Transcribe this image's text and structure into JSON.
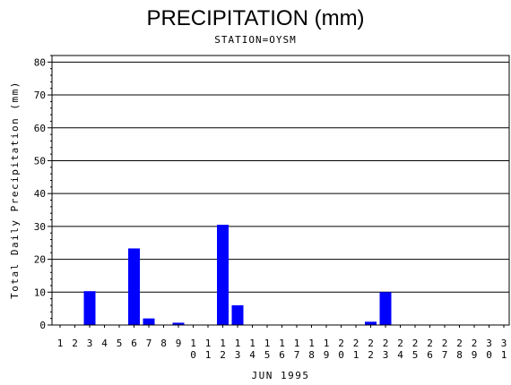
{
  "chart_data": {
    "type": "bar",
    "title": "PRECIPITATION (mm)",
    "subtitle": "STATION=OYSM",
    "xlabel": "JUN 1995",
    "ylabel": "Total Daily Precipitation (mm)",
    "categories": [
      "1",
      "2",
      "3",
      "4",
      "5",
      "6",
      "7",
      "8",
      "9",
      "10",
      "11",
      "12",
      "13",
      "14",
      "15",
      "16",
      "17",
      "18",
      "19",
      "20",
      "21",
      "22",
      "23",
      "24",
      "25",
      "26",
      "27",
      "28",
      "29",
      "30",
      "31"
    ],
    "values": [
      0,
      0,
      10.3,
      0,
      0,
      23.3,
      2,
      0,
      0.7,
      0,
      0,
      30.5,
      6,
      0,
      0,
      0,
      0,
      0,
      0,
      0,
      0,
      1,
      10,
      0,
      0,
      0,
      0,
      0,
      0,
      0,
      0
    ],
    "ylim": [
      0,
      82
    ],
    "yticks": [
      "0",
      "10",
      "20",
      "30",
      "40",
      "50",
      "60",
      "70",
      "80"
    ],
    "grid": true,
    "bar_color": "#0000ff"
  }
}
